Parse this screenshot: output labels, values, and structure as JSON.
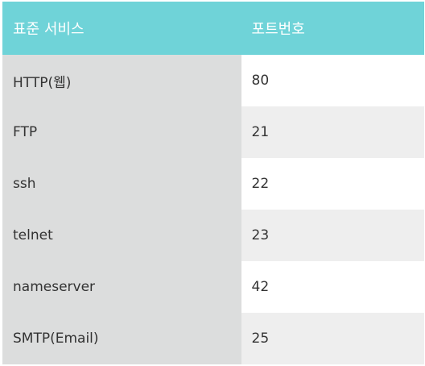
{
  "table": {
    "headers": [
      "표준 서비스",
      "포트번호"
    ],
    "rows": [
      {
        "service": "HTTP(웹)",
        "port": "80"
      },
      {
        "service": "FTP",
        "port": "21"
      },
      {
        "service": "ssh",
        "port": "22"
      },
      {
        "service": "telnet",
        "port": "23"
      },
      {
        "service": "nameserver",
        "port": "42"
      },
      {
        "service": "SMTP(Email)",
        "port": "25"
      }
    ],
    "colors": {
      "header_bg": "#6fd3d8",
      "service_col_bg": "#dcdddd",
      "row_alt_bg": "#eeeeee"
    }
  }
}
